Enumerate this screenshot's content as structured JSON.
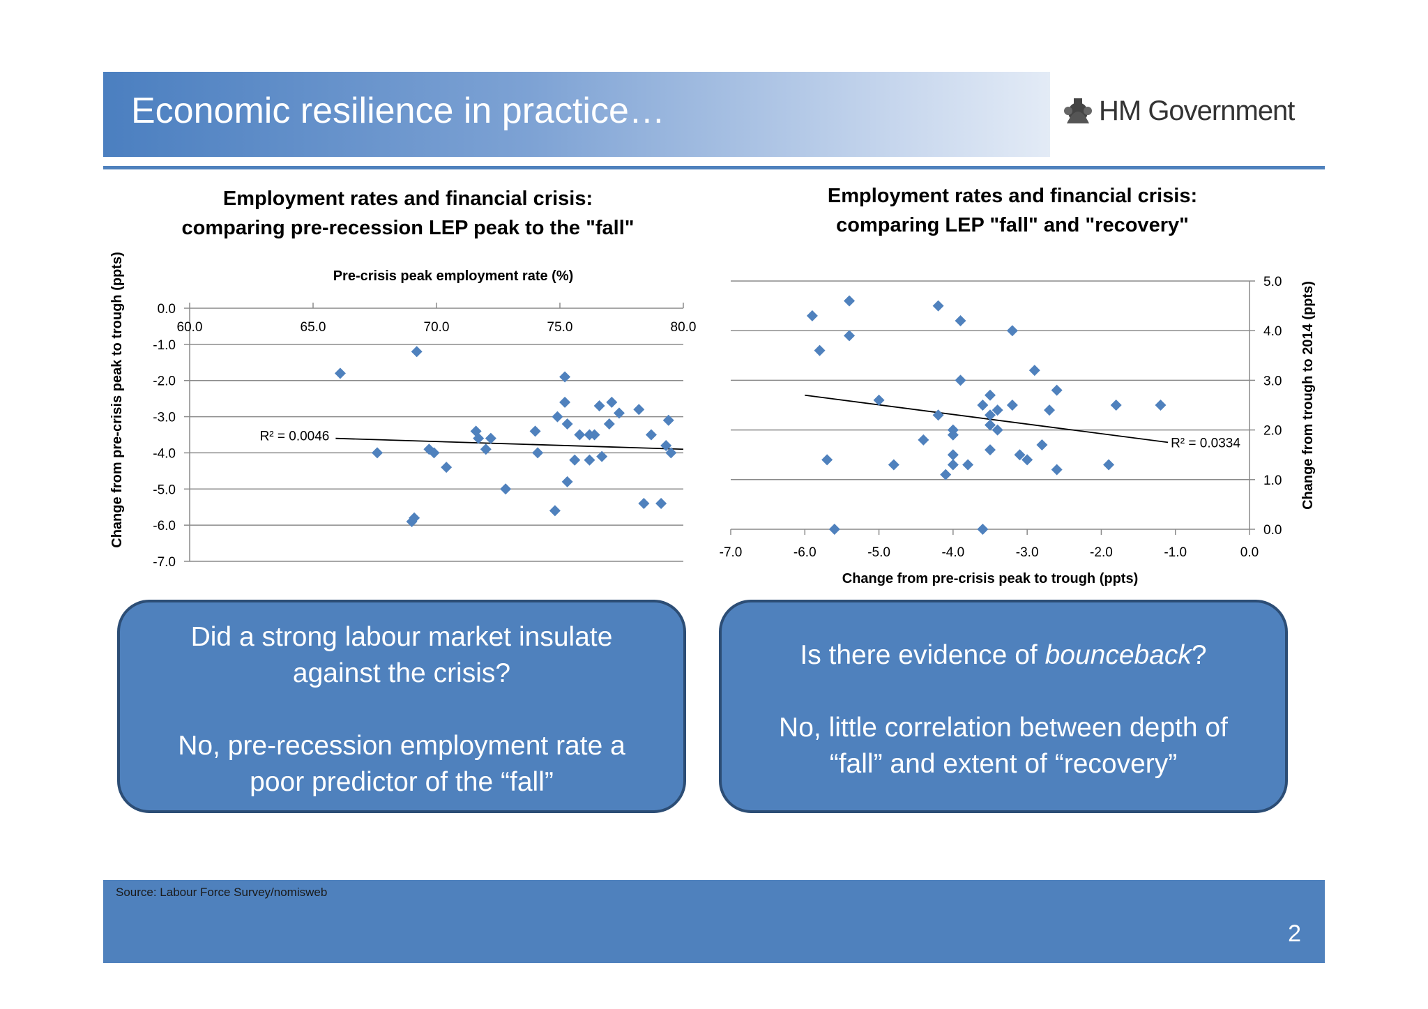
{
  "slide": {
    "title": "Economic resilience in practice…",
    "logo_text": "HM Government",
    "source": "Source: Labour Force Survey/nomisweb",
    "page_number": "2"
  },
  "colors": {
    "accent": "#4f81bd",
    "marker": "#4f81bd",
    "callout_border": "#2c4d75"
  },
  "callouts": {
    "left": {
      "question": "Did a strong labour market insulate against the crisis?",
      "answer": "No, pre-recession employment rate a poor predictor of the “fall”"
    },
    "right": {
      "question_prefix": "Is there evidence of ",
      "question_italic": "bounceback",
      "question_suffix": "?",
      "answer": "No, little correlation between depth of “fall” and extent of “recovery”"
    }
  },
  "chart_data": [
    {
      "type": "scatter",
      "title": "Employment rates and financial crisis:",
      "subtitle": "comparing pre-recession LEP peak to the \"fall\"",
      "xlabel": "Pre-crisis peak employment rate (%)",
      "ylabel": "Change from pre-crisis peak to trough (ppts)",
      "xlim": [
        60,
        80
      ],
      "ylim": [
        -7,
        0
      ],
      "xticks": [
        "60.0",
        "65.0",
        "70.0",
        "75.0",
        "80.0"
      ],
      "yticks": [
        "0.0",
        "-1.0",
        "-2.0",
        "-3.0",
        "-4.0",
        "-5.0",
        "-6.0",
        "-7.0"
      ],
      "x_axis_position": "top",
      "grid": true,
      "trendline": {
        "x": [
          66,
          80
        ],
        "y": [
          -3.6,
          -3.9
        ]
      },
      "r2_label": "R² = 0.0046",
      "points": [
        [
          66.1,
          -1.8
        ],
        [
          67.6,
          -4.0
        ],
        [
          69.0,
          -5.9
        ],
        [
          69.1,
          -5.8
        ],
        [
          69.2,
          -1.2
        ],
        [
          69.7,
          -3.9
        ],
        [
          69.9,
          -4.0
        ],
        [
          70.4,
          -4.4
        ],
        [
          71.6,
          -3.4
        ],
        [
          71.7,
          -3.6
        ],
        [
          72.0,
          -3.9
        ],
        [
          72.2,
          -3.6
        ],
        [
          72.8,
          -5.0
        ],
        [
          74.0,
          -3.4
        ],
        [
          74.1,
          -4.0
        ],
        [
          74.8,
          -5.6
        ],
        [
          74.9,
          -3.0
        ],
        [
          75.2,
          -1.9
        ],
        [
          75.2,
          -2.6
        ],
        [
          75.3,
          -3.2
        ],
        [
          75.3,
          -4.8
        ],
        [
          75.6,
          -4.2
        ],
        [
          75.8,
          -3.5
        ],
        [
          76.2,
          -4.2
        ],
        [
          76.2,
          -3.5
        ],
        [
          76.4,
          -3.5
        ],
        [
          76.6,
          -2.7
        ],
        [
          76.7,
          -4.1
        ],
        [
          77.0,
          -3.2
        ],
        [
          77.1,
          -2.6
        ],
        [
          77.4,
          -2.9
        ],
        [
          78.2,
          -2.8
        ],
        [
          78.4,
          -5.4
        ],
        [
          78.7,
          -3.5
        ],
        [
          79.1,
          -5.4
        ],
        [
          79.3,
          -3.8
        ],
        [
          79.4,
          -3.1
        ],
        [
          79.5,
          -4.0
        ]
      ]
    },
    {
      "type": "scatter",
      "title": "Employment rates and financial crisis:",
      "subtitle": "comparing LEP \"fall\" and \"recovery\"",
      "xlabel": "Change from pre-crisis peak to trough (ppts)",
      "ylabel": "Change from  trough to 2014 (ppts)",
      "xlim": [
        -7,
        0
      ],
      "ylim": [
        0,
        5
      ],
      "xticks": [
        "-7.0",
        "-6.0",
        "-5.0",
        "-4.0",
        "-3.0",
        "-2.0",
        "-1.0",
        "0.0"
      ],
      "yticks": [
        "0.0",
        "1.0",
        "2.0",
        "3.0",
        "4.0",
        "5.0"
      ],
      "y_axis_position": "right",
      "grid": true,
      "trendline": {
        "x": [
          -6.0,
          -1.1
        ],
        "y": [
          2.7,
          1.75
        ]
      },
      "r2_label": "R² = 0.0334",
      "points": [
        [
          -5.9,
          4.3
        ],
        [
          -5.8,
          3.6
        ],
        [
          -5.7,
          1.4
        ],
        [
          -5.6,
          0.0
        ],
        [
          -5.4,
          4.6
        ],
        [
          -5.4,
          3.9
        ],
        [
          -5.0,
          2.6
        ],
        [
          -4.8,
          1.3
        ],
        [
          -4.4,
          1.8
        ],
        [
          -4.2,
          4.5
        ],
        [
          -4.2,
          2.3
        ],
        [
          -4.1,
          1.1
        ],
        [
          -4.0,
          2.0
        ],
        [
          -4.0,
          1.9
        ],
        [
          -4.0,
          1.5
        ],
        [
          -4.0,
          1.3
        ],
        [
          -3.9,
          4.2
        ],
        [
          -3.9,
          3.0
        ],
        [
          -3.8,
          1.3
        ],
        [
          -3.6,
          2.5
        ],
        [
          -3.6,
          0.0
        ],
        [
          -3.5,
          2.7
        ],
        [
          -3.5,
          2.3
        ],
        [
          -3.5,
          2.1
        ],
        [
          -3.5,
          1.6
        ],
        [
          -3.4,
          2.4
        ],
        [
          -3.4,
          2.0
        ],
        [
          -3.2,
          4.0
        ],
        [
          -3.2,
          2.5
        ],
        [
          -3.1,
          1.5
        ],
        [
          -3.0,
          1.4
        ],
        [
          -2.9,
          3.2
        ],
        [
          -2.8,
          1.7
        ],
        [
          -2.7,
          2.4
        ],
        [
          -2.6,
          2.8
        ],
        [
          -2.6,
          1.2
        ],
        [
          -1.9,
          1.3
        ],
        [
          -1.8,
          2.5
        ],
        [
          -1.2,
          2.5
        ]
      ]
    }
  ]
}
